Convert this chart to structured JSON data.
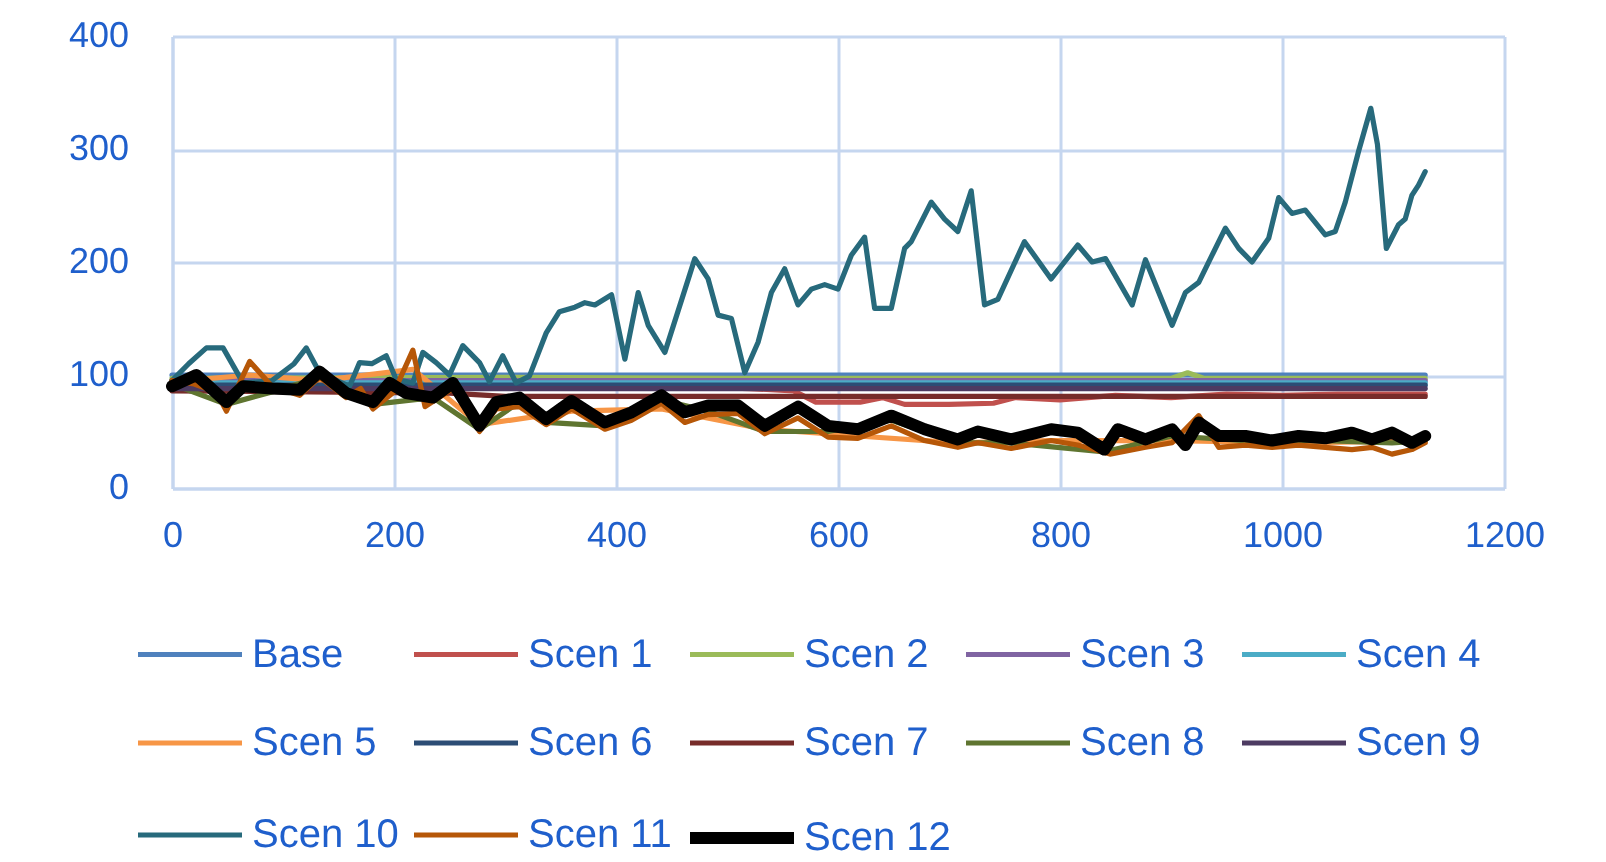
{
  "chart_data": {
    "type": "line",
    "xlim": [
      0,
      1200
    ],
    "xticks": [
      0,
      200,
      400,
      600,
      800,
      1000,
      1200
    ],
    "ylim": [
      0,
      400
    ],
    "yticks": [
      0,
      100,
      200,
      300,
      400
    ],
    "grid": true,
    "legend": "bottom",
    "series": [
      {
        "name": "Base",
        "color": "#4f81bd",
        "x": [
          0,
          300,
          600,
          900,
          1129
        ],
        "values": [
          100,
          100,
          100,
          100,
          100
        ]
      },
      {
        "name": "Scen 1",
        "color": "#c0504d",
        "x": [
          0,
          400,
          460,
          520,
          560,
          580,
          620,
          640,
          660,
          700,
          740,
          760,
          800,
          850,
          900,
          950,
          1000,
          1050,
          1129
        ],
        "values": [
          95,
          94,
          90,
          88,
          86,
          76,
          76,
          80,
          74,
          74,
          75,
          80,
          78,
          82,
          80,
          83,
          82,
          83,
          83
        ]
      },
      {
        "name": "Scen 2",
        "color": "#9bbb59",
        "x": [
          0,
          300,
          500,
          700,
          900,
          915,
          930,
          1129
        ],
        "values": [
          97,
          98,
          97,
          97,
          97,
          102,
          97,
          97
        ]
      },
      {
        "name": "Scen 3",
        "color": "#8064a2",
        "x": [
          0,
          300,
          600,
          900,
          1129
        ],
        "values": [
          95,
          95,
          95,
          95,
          95
        ]
      },
      {
        "name": "Scen 4",
        "color": "#4bacc6",
        "x": [
          0,
          300,
          600,
          900,
          1129
        ],
        "values": [
          93,
          93,
          93,
          93,
          93
        ]
      },
      {
        "name": "Scen 5",
        "color": "#f79646",
        "x": [
          0,
          70,
          133,
          217,
          277,
          360,
          441,
          534,
          618,
          708,
          792,
          901,
          1015,
          1129
        ],
        "values": [
          94,
          100,
          95,
          105,
          56,
          68,
          70,
          52,
          46,
          40,
          42,
          42,
          40,
          42
        ]
      },
      {
        "name": "Scen 6",
        "color": "#2c4d75",
        "x": [
          0,
          300,
          600,
          900,
          1129
        ],
        "values": [
          91,
          91,
          91,
          91,
          91
        ]
      },
      {
        "name": "Scen 7",
        "color": "#772c2a",
        "x": [
          0,
          250,
          300,
          1129
        ],
        "values": [
          86,
          84,
          81,
          81
        ]
      },
      {
        "name": "Scen 8",
        "color": "#5f7530",
        "x": [
          0,
          49,
          90,
          133,
          181,
          235,
          277,
          313,
          337,
          390,
          441,
          483,
          534,
          591,
          648,
          708,
          756,
          840,
          901,
          967,
          1039,
          1099,
          1129
        ],
        "values": [
          92,
          74,
          85,
          98,
          74,
          80,
          52,
          76,
          58,
          55,
          78,
          68,
          50,
          50,
          60,
          40,
          40,
          32,
          46,
          42,
          42,
          40,
          42
        ]
      },
      {
        "name": "Scen 9",
        "color": "#4d3b62",
        "x": [
          0,
          300,
          600,
          900,
          1129
        ],
        "values": [
          88,
          88,
          88,
          88,
          88
        ]
      },
      {
        "name": "Scen 10",
        "color": "#276a7c",
        "x": [
          0,
          15,
          31,
          46,
          64,
          90,
          110,
          121,
          133,
          160,
          169,
          180,
          193,
          202,
          217,
          226,
          238,
          250,
          262,
          277,
          286,
          298,
          310,
          322,
          337,
          349,
          363,
          372,
          381,
          396,
          408,
          420,
          429,
          444,
          471,
          483,
          492,
          504,
          516,
          528,
          540,
          552,
          564,
          576,
          588,
          600,
          612,
          624,
          633,
          648,
          660,
          666,
          684,
          696,
          708,
          720,
          732,
          744,
          768,
          792,
          816,
          829,
          841,
          865,
          877,
          889,
          901,
          913,
          925,
          937,
          949,
          961,
          973,
          988,
          997,
          1009,
          1021,
          1039,
          1048,
          1057,
          1069,
          1080,
          1086,
          1094,
          1105,
          1111,
          1117,
          1123,
          1129
        ],
        "values": [
          95,
          110,
          124,
          124,
          93,
          95,
          110,
          124,
          102,
          90,
          111,
          110,
          117,
          96,
          93,
          120,
          111,
          100,
          126,
          111,
          94,
          117,
          93,
          99,
          137,
          156,
          160,
          164,
          162,
          171,
          114,
          173,
          144,
          120,
          203,
          185,
          153,
          150,
          102,
          129,
          173,
          194,
          162,
          176,
          180,
          176,
          206,
          222,
          159,
          159,
          212,
          218,
          253,
          238,
          227,
          263,
          162,
          167,
          218,
          185,
          215,
          200,
          203,
          162,
          202,
          173,
          144,
          173,
          182,
          206,
          230,
          212,
          200,
          221,
          257,
          243,
          246,
          224,
          227,
          253,
          298,
          336,
          304,
          212,
          233,
          238,
          259,
          268,
          280
        ]
      },
      {
        "name": "Scen 11",
        "color": "#b65708",
        "x": [
          0,
          20,
          40,
          49,
          70,
          90,
          115,
          133,
          157,
          170,
          181,
          200,
          217,
          228,
          253,
          277,
          292,
          313,
          337,
          360,
          390,
          414,
          441,
          462,
          483,
          510,
          534,
          564,
          591,
          618,
          648,
          678,
          708,
          726,
          756,
          792,
          816,
          845,
          877,
          901,
          925,
          943,
          967,
          991,
          1015,
          1039,
          1063,
          1081,
          1099,
          1117,
          1129
        ],
        "values": [
          95,
          92,
          85,
          68,
          112,
          90,
          82,
          98,
          80,
          88,
          70,
          85,
          122,
          72,
          88,
          50,
          70,
          72,
          56,
          70,
          52,
          60,
          75,
          58,
          65,
          66,
          48,
          62,
          45,
          44,
          55,
          42,
          36,
          40,
          35,
          42,
          38,
          30,
          36,
          40,
          64,
          36,
          38,
          36,
          38,
          36,
          34,
          36,
          30,
          34,
          40
        ]
      },
      {
        "name": "Scen 12",
        "color": "#000000",
        "x": [
          0,
          22,
          49,
          64,
          90,
          115,
          133,
          157,
          181,
          196,
          211,
          235,
          253,
          277,
          292,
          313,
          337,
          360,
          390,
          414,
          441,
          462,
          483,
          510,
          534,
          564,
          591,
          618,
          648,
          678,
          708,
          726,
          756,
          792,
          816,
          840,
          852,
          877,
          901,
          913,
          925,
          943,
          967,
          991,
          1015,
          1039,
          1063,
          1081,
          1099,
          1117,
          1129
        ],
        "values": [
          90,
          100,
          76,
          90,
          88,
          87,
          103,
          84,
          76,
          93,
          84,
          80,
          93,
          55,
          76,
          80,
          61,
          77,
          58,
          67,
          82,
          67,
          73,
          73,
          55,
          72,
          55,
          52,
          64,
          52,
          43,
          50,
          43,
          52,
          49,
          34,
          52,
          43,
          52,
          38,
          58,
          46,
          46,
          42,
          46,
          44,
          49,
          43,
          49,
          40,
          46
        ]
      }
    ]
  }
}
